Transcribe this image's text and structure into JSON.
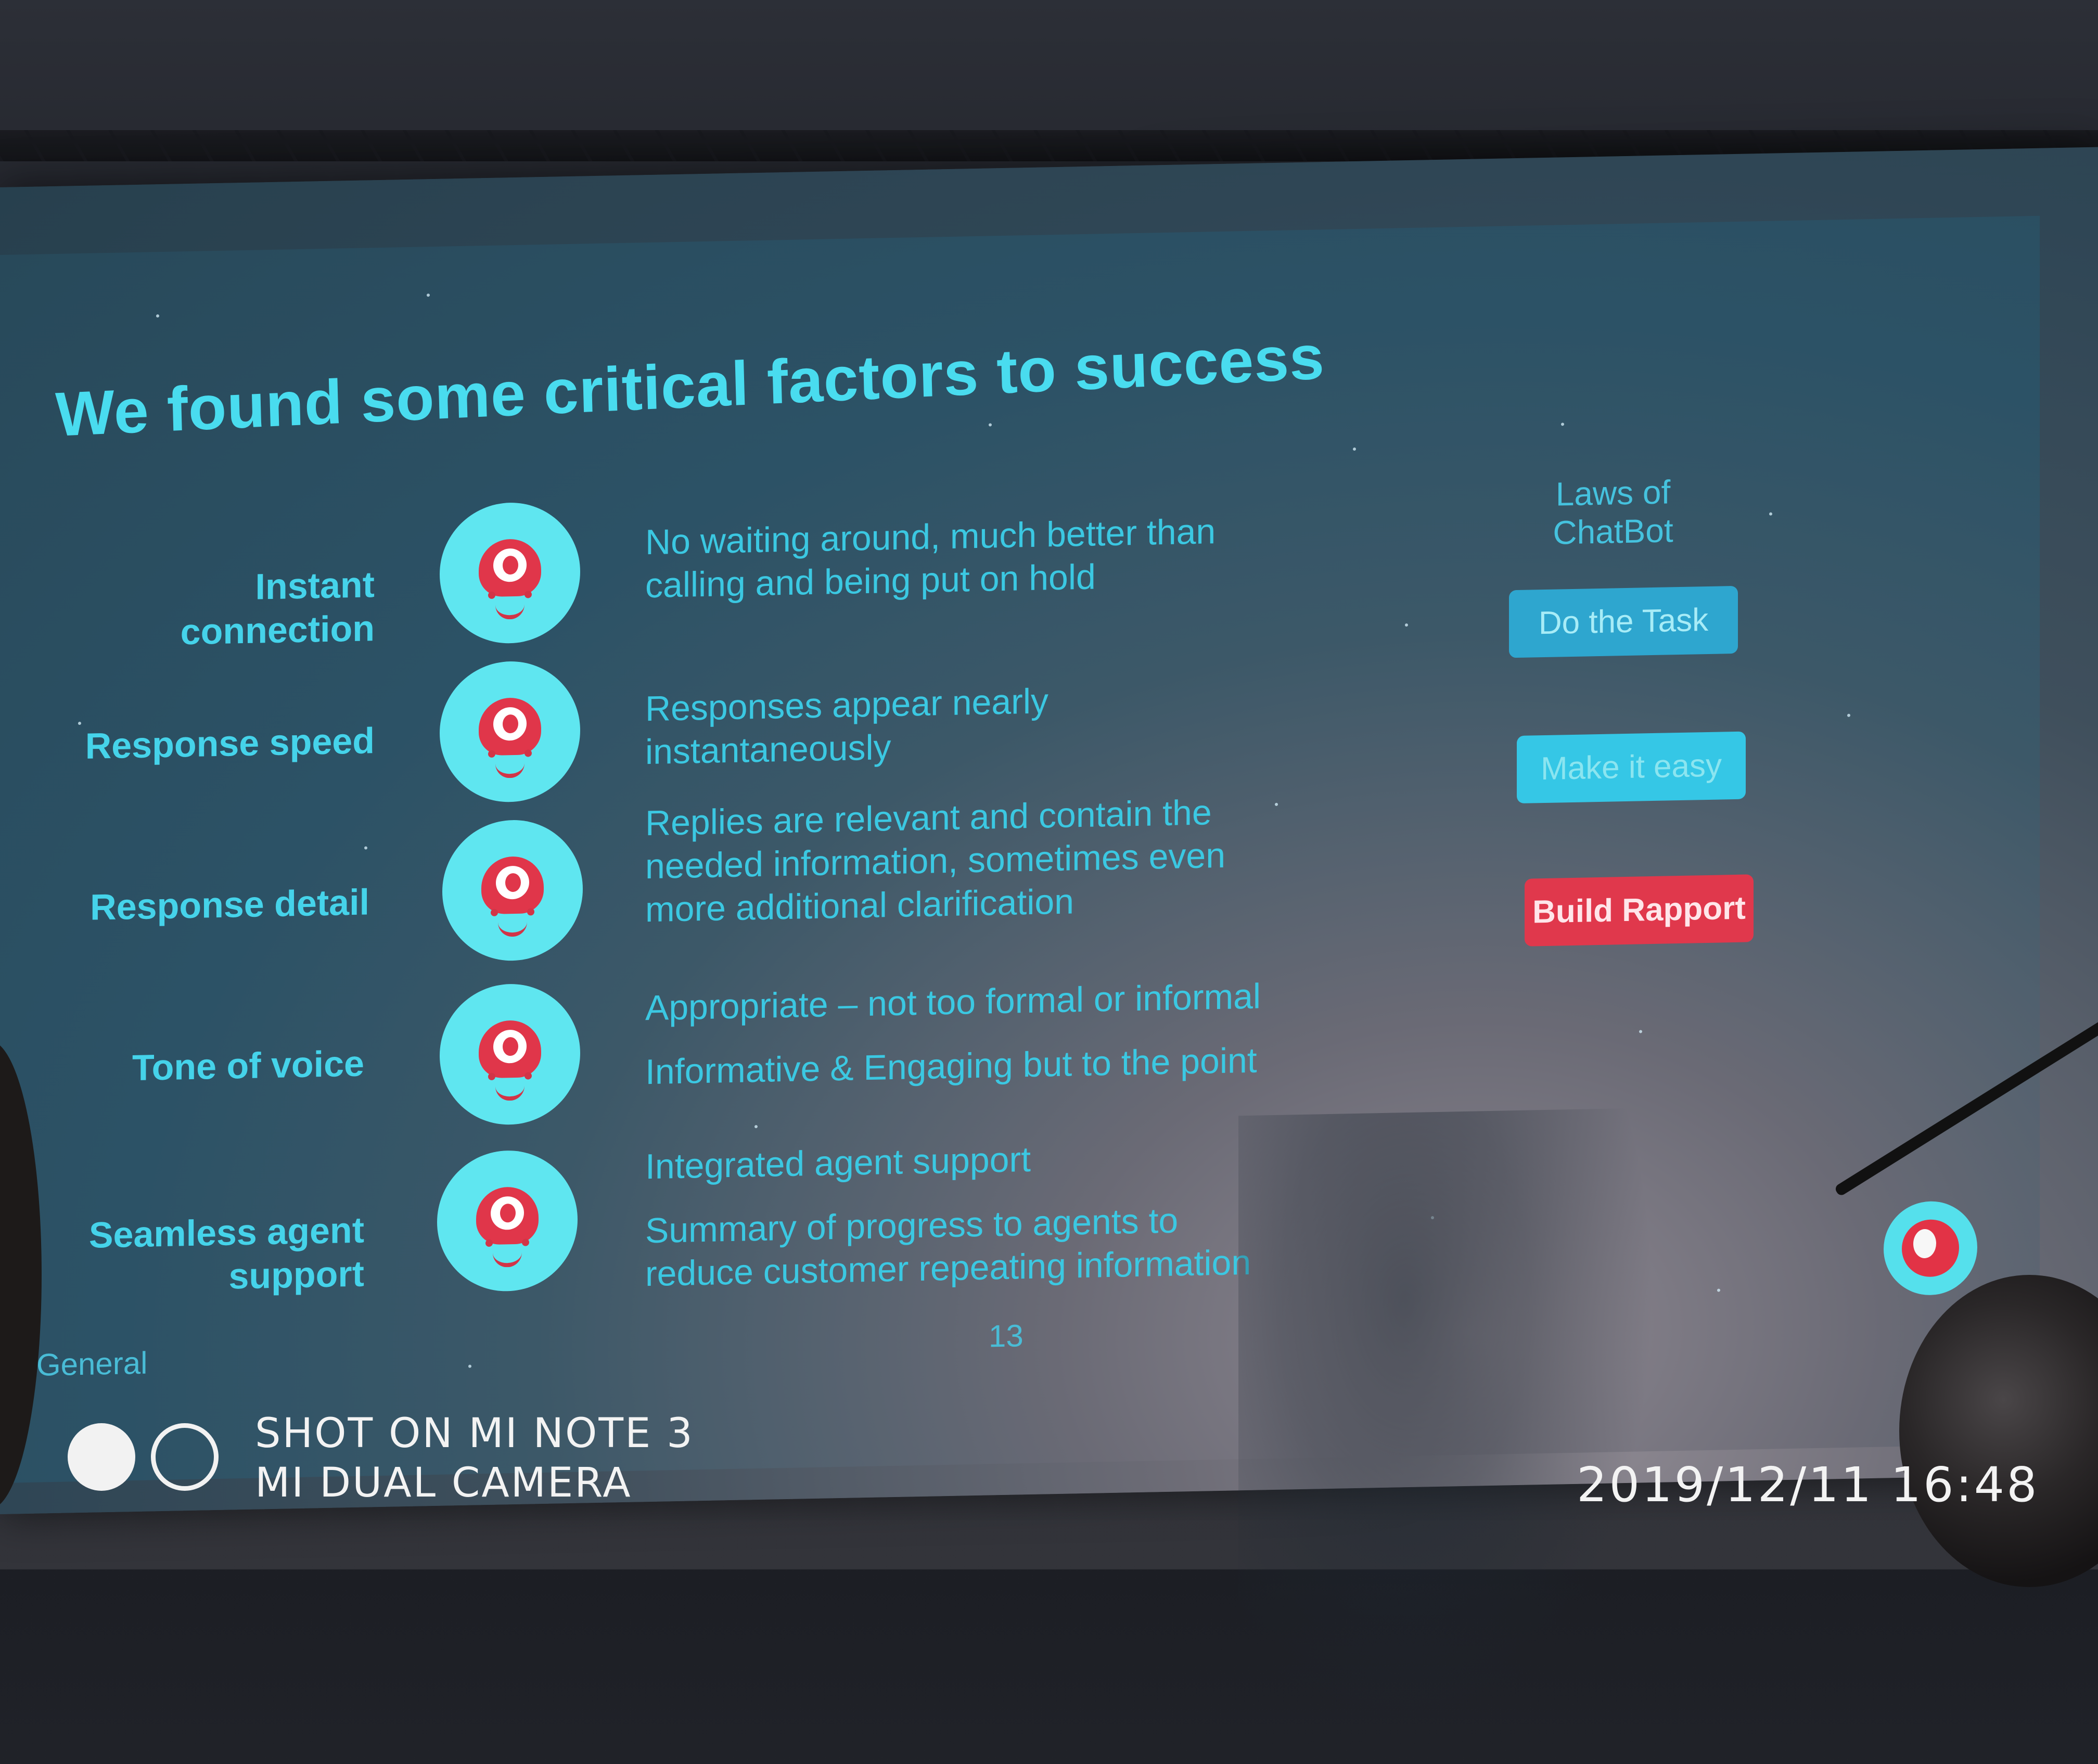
{
  "slide": {
    "title": "We found some critical factors to success",
    "factors": [
      {
        "label": "Instant connection",
        "description": [
          "No waiting around, much better than",
          "calling and being put on hold"
        ]
      },
      {
        "label": "Response speed",
        "description": [
          "Responses appear nearly",
          "instantaneously"
        ]
      },
      {
        "label": "Response detail",
        "description": [
          "Replies are relevant and contain the",
          "needed information, sometimes even",
          "more additional clarification"
        ]
      },
      {
        "label": "Tone of voice",
        "description": [
          "Appropriate – not too formal or informal",
          "Informative & Engaging but to the point"
        ]
      },
      {
        "label": [
          "Seamless  agent",
          "support"
        ],
        "description": [
          "Integrated agent support",
          "Summary of progress to agents to",
          "reduce customer repeating information"
        ]
      }
    ],
    "laws": {
      "title": "Laws of ChatBot",
      "items": [
        "Do the Task",
        "Make it easy",
        "Build Rapport"
      ]
    },
    "footer_left": "General",
    "page_number": "13"
  },
  "watermark": {
    "line1": "SHOT ON MI NOTE 3",
    "line2": "MI DUAL CAMERA",
    "datetime": "2019/12/11  16:48"
  },
  "colors": {
    "accent_cyan": "#49dcef",
    "rapport_red": "#e0384c",
    "task_blue": "#2ea6cf"
  }
}
